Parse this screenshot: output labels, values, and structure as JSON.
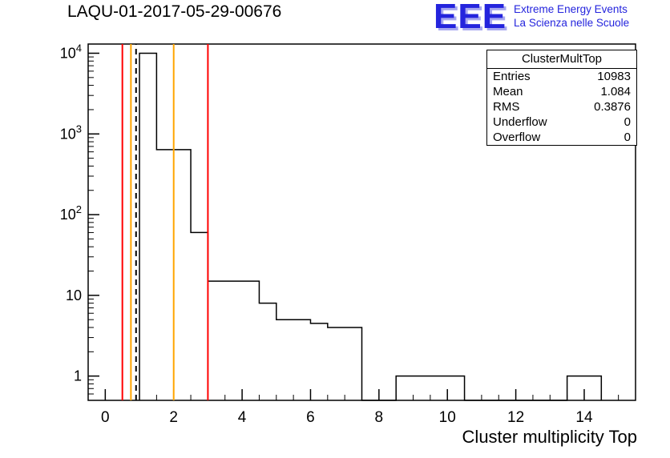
{
  "title": "LAQU-01-2017-05-29-00676",
  "logo": {
    "acronym": "EEE",
    "line1": "Extreme Energy Events",
    "line2": "La Scienza nelle Scuole",
    "color": "#2424dd",
    "shadow": "#a8a8f0"
  },
  "stats": {
    "title": "ClusterMultTop",
    "rows": [
      {
        "label": "Entries",
        "value": "10983"
      },
      {
        "label": "Mean",
        "value": "1.084"
      },
      {
        "label": "RMS",
        "value": "0.3876"
      },
      {
        "label": "Underflow",
        "value": "0"
      },
      {
        "label": "Overflow",
        "value": "0"
      }
    ]
  },
  "chart_data": {
    "type": "bar",
    "subtype": "step-histogram",
    "title": "LAQU-01-2017-05-29-00676",
    "xlabel": "Cluster multiplicity Top",
    "ylabel": "",
    "x_range": [
      -0.5,
      15.5
    ],
    "y_range": [
      0.5,
      13000
    ],
    "y_scale": "log",
    "grid": false,
    "x_major_ticks": [
      0,
      2,
      4,
      6,
      8,
      10,
      12,
      14
    ],
    "x_tick_labels": [
      "0",
      "2",
      "4",
      "6",
      "8",
      "10",
      "12",
      "14"
    ],
    "x_minor_step": 0.5,
    "y_major_ticks": [
      1,
      10,
      100,
      1000,
      10000
    ],
    "y_tick_labels": [
      "1",
      "10",
      "10^2",
      "10^3",
      "10^4"
    ],
    "line_color": "#000000",
    "bins": [
      {
        "x1": 1.0,
        "x2": 1.5,
        "y": 10000
      },
      {
        "x1": 1.5,
        "x2": 2.5,
        "y": 640
      },
      {
        "x1": 2.5,
        "x2": 3.0,
        "y": 60
      },
      {
        "x1": 3.0,
        "x2": 4.5,
        "y": 15
      },
      {
        "x1": 4.5,
        "x2": 5.0,
        "y": 8
      },
      {
        "x1": 5.0,
        "x2": 6.0,
        "y": 5
      },
      {
        "x1": 6.0,
        "x2": 6.5,
        "y": 4.5
      },
      {
        "x1": 6.5,
        "x2": 7.5,
        "y": 4
      },
      {
        "x1": 8.5,
        "x2": 10.5,
        "y": 1
      },
      {
        "x1": 13.5,
        "x2": 14.5,
        "y": 1
      }
    ],
    "marker_lines": [
      {
        "x": 0.5,
        "color": "#ff0000",
        "style": "solid"
      },
      {
        "x": 0.75,
        "color": "#ffa500",
        "style": "solid"
      },
      {
        "x": 0.9,
        "color": "#000000",
        "style": "dashed"
      },
      {
        "x": 2.0,
        "color": "#ffa500",
        "style": "solid"
      },
      {
        "x": 3.0,
        "color": "#ff0000",
        "style": "solid"
      }
    ]
  }
}
